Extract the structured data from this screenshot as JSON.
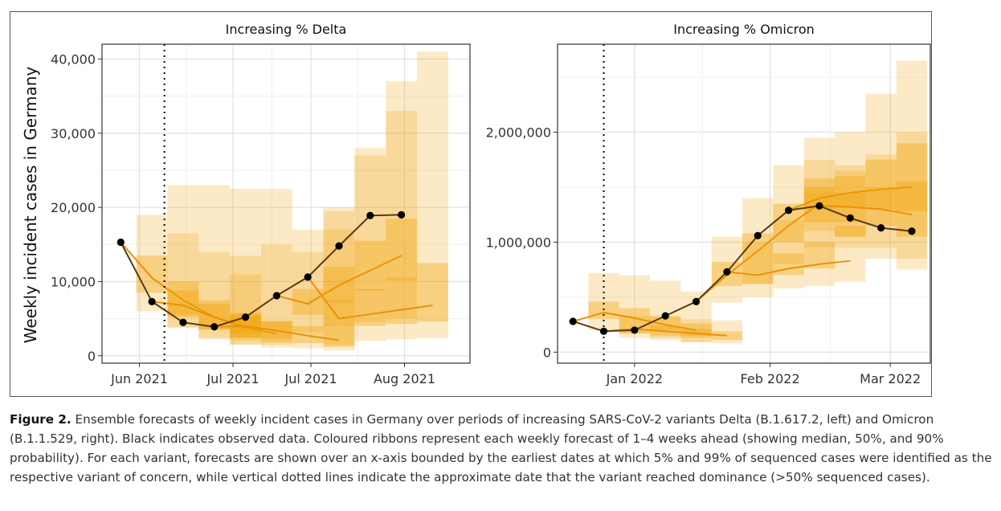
{
  "figure": {
    "ylabel": "Weekly incident cases in Germany",
    "colors": {
      "ribbon": "#f0a000",
      "median": "#e8920a",
      "observed": "#000000",
      "observed_line": "#5a3a10"
    }
  },
  "caption": {
    "label": "Figure 2.",
    "text": " Ensemble forecasts of weekly incident cases in Germany over periods of increasing SARS-CoV-2 variants Delta (B.1.617.2, left) and Omicron (B.1.1.529, right). Black indicates observed data. Coloured ribbons represent each weekly forecast of 1–4 weeks ahead (showing median, 50%, and 90% probability). For each variant, forecasts are shown over an x-axis bounded by the earliest dates at which 5% and 99% of sequenced cases were identified as the respective variant of concern, while vertical dotted lines indicate the approximate date that the variant reached dominance (>50% sequenced cases)."
  },
  "chart_data": [
    {
      "type": "line",
      "title": "Increasing % Delta",
      "ylabel": "Weekly incident cases in Germany",
      "xlabel": "",
      "x_ticks": [
        "Jun 2021",
        "Jul 2021",
        "Jul 2021",
        "Aug 2021"
      ],
      "x_tick_weeks": [
        0.6,
        3.6,
        6.1,
        9.1
      ],
      "xlim": [
        -0.6,
        11.2
      ],
      "y_ticks": [
        0,
        10000,
        20000,
        30000,
        40000
      ],
      "y_tick_labels": [
        "0",
        "10,000",
        "20,000",
        "30,000",
        "40,000"
      ],
      "ylim": [
        -1000,
        42000
      ],
      "dominance_week": 1.4,
      "grid": true,
      "observed": {
        "weeks": [
          0,
          1,
          2,
          3,
          4,
          5,
          6,
          7,
          8,
          9
        ],
        "values": [
          15300,
          7300,
          4500,
          3900,
          5200,
          8100,
          10600,
          14800,
          18900,
          19000
        ]
      },
      "forecasts": [
        {
          "start_week": 0,
          "horizon": [
            1,
            2,
            3,
            4
          ],
          "median": [
            10500,
            7500,
            5200,
            3900
          ],
          "q25": [
            8500,
            5500,
            3500,
            2400
          ],
          "q75": [
            13500,
            10000,
            7500,
            5800
          ],
          "q05": [
            6000,
            3800,
            2200,
            1500
          ],
          "q95": [
            19000,
            16500,
            14000,
            11000
          ]
        },
        {
          "start_week": 1,
          "horizon": [
            1,
            2,
            3,
            4
          ],
          "median": [
            6800,
            5200,
            3800,
            3000
          ],
          "q25": [
            5200,
            3600,
            2400,
            1800
          ],
          "q75": [
            8800,
            7000,
            5600,
            4600
          ],
          "q05": [
            3800,
            2400,
            1500,
            1100
          ],
          "q95": [
            23000,
            23000,
            22500,
            22500
          ]
        },
        {
          "start_week": 3,
          "horizon": [
            1,
            2,
            3,
            4
          ],
          "median": [
            4000,
            3400,
            2700,
            2100
          ],
          "q25": [
            3000,
            2300,
            1700,
            1200
          ],
          "q75": [
            5300,
            4700,
            4000,
            3500
          ],
          "q05": [
            2000,
            1500,
            1000,
            700
          ],
          "q95": [
            13500,
            15000,
            17000,
            19500
          ]
        },
        {
          "start_week": 5,
          "horizon": [
            1,
            2,
            3,
            4
          ],
          "median": [
            7000,
            9500,
            11500,
            13500
          ],
          "q25": [
            5500,
            7200,
            8800,
            10200
          ],
          "q75": [
            9000,
            12000,
            15500,
            18500
          ],
          "q05": [
            3200,
            4000,
            4500,
            5000
          ],
          "q95": [
            14000,
            20000,
            27000,
            33000
          ]
        },
        {
          "start_week": 6,
          "horizon": [
            1,
            2,
            3,
            4
          ],
          "median": [
            5000,
            5600,
            6200,
            6800
          ],
          "q25": [
            3500,
            4000,
            4300,
            4600
          ],
          "q75": [
            7500,
            9000,
            10500,
            12500
          ],
          "q05": [
            1500,
            2000,
            2200,
            2400
          ],
          "q95": [
            17000,
            28000,
            37000,
            41000
          ]
        }
      ]
    },
    {
      "type": "line",
      "title": "Increasing % Omicron",
      "ylabel": "",
      "xlabel": "",
      "x_ticks": [
        "Jan 2022",
        "Feb 2022",
        "Mar 2022"
      ],
      "x_tick_weeks": [
        2.0,
        6.4,
        10.3
      ],
      "xlim": [
        -0.5,
        11.6
      ],
      "y_ticks": [
        0,
        1000000,
        2000000
      ],
      "y_tick_labels": [
        "0",
        "1,000,000",
        "2,000,000"
      ],
      "ylim": [
        -100000,
        2800000
      ],
      "dominance_week": 1.0,
      "grid": true,
      "observed": {
        "weeks": [
          0,
          1,
          2,
          3,
          4,
          5,
          6,
          7,
          8,
          9,
          10,
          11
        ],
        "values": [
          280000,
          190000,
          200000,
          330000,
          460000,
          730000,
          1060000,
          1290000,
          1330000,
          1220000,
          1130000,
          1100000
        ]
      },
      "forecasts": [
        {
          "start_week": 0,
          "horizon": [
            1,
            2,
            3,
            4
          ],
          "median": [
            360000,
            310000,
            250000,
            200000
          ],
          "q25": [
            300000,
            260000,
            200000,
            150000
          ],
          "q75": [
            460000,
            400000,
            330000,
            260000
          ],
          "q05": [
            200000,
            170000,
            130000,
            90000
          ],
          "q95": [
            720000,
            700000,
            650000,
            550000
          ]
        },
        {
          "start_week": 1,
          "horizon": [
            1,
            2,
            3,
            4
          ],
          "median": [
            210000,
            190000,
            170000,
            150000
          ],
          "q25": [
            170000,
            150000,
            130000,
            110000
          ],
          "q75": [
            260000,
            240000,
            210000,
            190000
          ],
          "q05": [
            130000,
            110000,
            90000,
            80000
          ],
          "q95": [
            330000,
            320000,
            300000,
            290000
          ]
        },
        {
          "start_week": 4,
          "horizon": [
            1,
            2,
            3,
            4
          ],
          "median": [
            700000,
            920000,
            1150000,
            1350000
          ],
          "q25": [
            600000,
            800000,
            1000000,
            1180000
          ],
          "q75": [
            820000,
            1080000,
            1350000,
            1580000
          ],
          "q05": [
            450000,
            620000,
            800000,
            950000
          ],
          "q95": [
            1050000,
            1400000,
            1700000,
            1950000
          ]
        },
        {
          "start_week": 5,
          "horizon": [
            1,
            2,
            3,
            4
          ],
          "median": [
            700000,
            760000,
            800000,
            830000
          ],
          "q25": [
            620000,
            700000,
            760000,
            1050000
          ],
          "q75": [
            800000,
            900000,
            1000000,
            1150000
          ],
          "q05": [
            500000,
            580000,
            600000,
            640000
          ],
          "q95": [
            1000000,
            1200000,
            1450000,
            1700000
          ]
        },
        {
          "start_week": 7,
          "horizon": [
            1,
            2,
            3,
            4
          ],
          "median": [
            1400000,
            1450000,
            1480000,
            1500000
          ],
          "q25": [
            1300000,
            1320000,
            1300000,
            1280000
          ],
          "q75": [
            1500000,
            1600000,
            1750000,
            1900000
          ],
          "q05": [
            1100000,
            1050000,
            950000,
            850000
          ],
          "q95": [
            1750000,
            2000000,
            2350000,
            2650000
          ]
        },
        {
          "start_week": 8,
          "horizon": [
            1,
            2,
            3
          ],
          "median": [
            1320000,
            1300000,
            1250000
          ],
          "q25": [
            1180000,
            1150000,
            1050000
          ],
          "q75": [
            1450000,
            1500000,
            1550000
          ],
          "q05": [
            950000,
            850000,
            750000
          ],
          "q95": [
            1650000,
            1800000,
            2000000
          ]
        }
      ]
    }
  ]
}
